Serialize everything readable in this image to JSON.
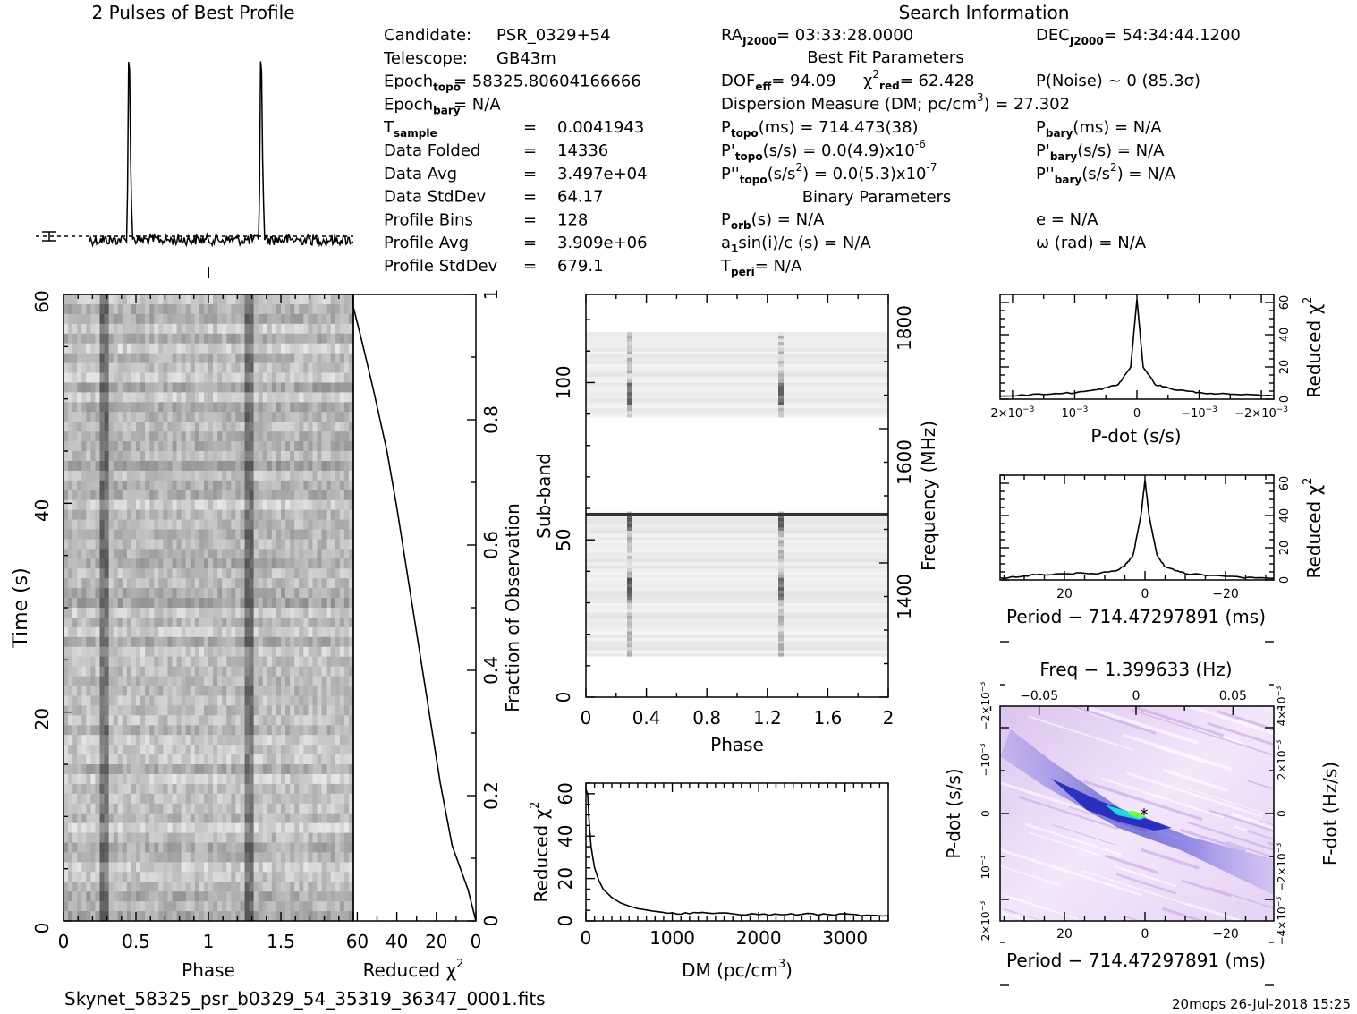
{
  "page": {
    "profile_title": "2 Pulses of Best Profile",
    "search_title": "Search Information",
    "filename": "Skynet_58325_psr_b0329_54_35319_36347_0001.fits",
    "footer_stamp": "20mops  26-Jul-2018 15:25"
  },
  "info": {
    "left": [
      {
        "label": "Candidate:",
        "sub": "",
        "value": "PSR_0329+54"
      },
      {
        "label": "Telescope:",
        "sub": "",
        "value": "GB43m"
      },
      {
        "label": "Epoch",
        "sub": "topo",
        "value": "= 58325.80604166666"
      },
      {
        "label": "Epoch",
        "sub": "bary",
        "value": "= N/A"
      },
      {
        "label": "T",
        "sub": "sample",
        "value": "=   0.0041943"
      },
      {
        "label": "Data Folded",
        "sub": "",
        "value": "=   14336"
      },
      {
        "label": "Data Avg",
        "sub": "",
        "value": "=   3.497e+04"
      },
      {
        "label": "Data StdDev",
        "sub": "",
        "value": "=   64.17"
      },
      {
        "label": "Profile Bins",
        "sub": "",
        "value": "=   128"
      },
      {
        "label": "Profile Avg",
        "sub": "",
        "value": "=   3.909e+06"
      },
      {
        "label": "Profile StdDev",
        "sub": "",
        "value": "=   679.1"
      }
    ],
    "ra": "RA",
    "ra_sub": "J2000",
    "ra_value": "= 03:33:28.0000",
    "dec": "DEC",
    "dec_sub": "J2000",
    "dec_value": "= 54:34:44.1200",
    "best_fit_header": "Best Fit Parameters",
    "dof": "DOF",
    "dof_sub": "eff",
    "dof_value": "= 94.09",
    "chi": "χ",
    "chi_sup": "2",
    "chi_sub": "red",
    "chi_value": "= 62.428",
    "pnoise": "P(Noise) ~ 0    (85.3σ)",
    "dm_line": "Dispersion Measure (DM; pc/cm",
    "dm_sup": "3",
    "dm_value": ") = 27.302",
    "ptopo": "P",
    "ptopo_sub": "topo",
    "ptopo_value": "(ms) =  714.473(38)",
    "pbary": "P",
    "pbary_sub": "bary",
    "pbary_value": "(ms) = N/A",
    "pdtopo": "P'",
    "pdtopo_sub": "topo",
    "pdtopo_value": "(s/s) = 0.0(4.9)x10",
    "pdtopo_sup": "-6",
    "pdbary": "P'",
    "pdbary_sub": "bary",
    "pdbary_value": "(s/s) = N/A",
    "pddtopo": "P''",
    "pddtopo_sub": "topo",
    "pddtopo_value": "(s/s",
    "pddtopo_sup1": "2",
    "pddtopo_value2": ") = 0.0(5.3)x10",
    "pddtopo_sup2": "-7",
    "pddbary": "P''",
    "pddbary_sub": "bary",
    "pddbary_value": "(s/s",
    "pddbary_sup": "2",
    "pddbary_value2": ") = N/A",
    "binary_header": "Binary Parameters",
    "porb": "P",
    "porb_sub": "orb",
    "porb_value": "(s) = N/A",
    "ecc": "e = N/A",
    "a1": "a",
    "a1_sub": "1",
    "a1_value": "sin(i)/c (s) = N/A",
    "omega": "ω (rad) = N/A",
    "tperi": "T",
    "tperi_sub": "peri",
    "tperi_value": "= N/A"
  },
  "labels": {
    "time_y": "Time (s)",
    "phase": "Phase",
    "reduced_chi": "Reduced χ",
    "chi_sup": "2",
    "fraction": "Fraction of Observation",
    "subband": "Sub-band",
    "frequency": "Frequency (MHz)",
    "dm_x": "DM (pc/cm",
    "dm_x_sup": "3",
    "dm_x_end": ")",
    "pdot_x": "P-dot (s/s)",
    "period_x": "Period − 714.47297891 (ms)",
    "freq_top": "Freq − 1.399633 (Hz)",
    "pdot_y": "P-dot (s/s)",
    "fdot_y": "F-dot (Hz/s)"
  },
  "ticks": {
    "time_y": [
      "0",
      "20",
      "40",
      "60"
    ],
    "phase_x": [
      "0",
      "0.5",
      "1",
      "1.5"
    ],
    "redchi_x": [
      "60",
      "40",
      "20",
      "0"
    ],
    "fraction_y": [
      "0",
      "0.2",
      "0.4",
      "0.6",
      "0.8",
      "1"
    ],
    "subband_y": [
      "0",
      "50",
      "100"
    ],
    "freq_y": [
      "1400",
      "1600",
      "1800"
    ],
    "phase2_x": [
      "0",
      "0.4",
      "0.8",
      "1.2",
      "1.6",
      "2"
    ],
    "dm_x": [
      "0",
      "1000",
      "2000",
      "3000"
    ],
    "dm_y": [
      "0",
      "20",
      "40",
      "60"
    ],
    "pdot_x": [
      "2×10",
      "10",
      "0",
      "−10",
      "−2×10"
    ],
    "pdot_x_sup": "−3",
    "red_y": [
      "0",
      "20",
      "40",
      "60"
    ],
    "period_x": [
      "20",
      "0",
      "−20"
    ],
    "freq_top": [
      "−0.05",
      "0",
      "0.05"
    ],
    "pdot_left": [
      "2×10",
      "10",
      "0",
      "−10",
      "−2×10"
    ],
    "fdot_right": [
      "−4×10",
      "−2×10",
      "0",
      "2×10",
      "4×10"
    ]
  },
  "chart_data": [
    {
      "type": "line",
      "title": "2 Pulses of Best Profile",
      "xlabel": "Phase",
      "ylabel": "",
      "x_range": [
        0,
        2
      ],
      "series": [
        {
          "peaks_at_phase": [
            0.3,
            1.3
          ]
        }
      ]
    },
    {
      "type": "heatmap",
      "xlabel": "Phase",
      "ylabel": "Time (s)",
      "xlim": [
        0,
        2
      ],
      "ylim": [
        0,
        60
      ],
      "pulse_phases": [
        0.29,
        1.29
      ],
      "colormap": "grayscale"
    },
    {
      "type": "line",
      "xlabel": "Reduced χ2",
      "ylabel": "Fraction of Observation",
      "xlim": [
        62,
        0
      ],
      "ylim": [
        0,
        1
      ],
      "x": [
        62.4,
        62,
        58,
        52,
        45,
        40,
        32,
        25,
        18,
        12,
        4,
        0
      ],
      "y": [
        1.0,
        0.98,
        0.93,
        0.85,
        0.75,
        0.66,
        0.5,
        0.36,
        0.22,
        0.12,
        0.05,
        0.0
      ]
    },
    {
      "type": "heatmap",
      "xlabel": "Phase",
      "ylabel": "Sub-band",
      "xlim": [
        0,
        2
      ],
      "ylim": [
        0,
        128
      ],
      "y2label": "Frequency (MHz)",
      "y2ticks": [
        1400,
        1600,
        1800
      ],
      "pulse_phases": [
        0.29,
        1.29
      ],
      "colormap": "grayscale"
    },
    {
      "type": "line",
      "xlabel": "DM (pc/cm3)",
      "ylabel": "Reduced χ2",
      "xlim": [
        0,
        3500
      ],
      "ylim": [
        0,
        65
      ],
      "x": [
        0,
        20,
        40,
        60,
        100,
        150,
        200,
        300,
        400,
        500,
        600,
        800,
        1000,
        1400,
        2000,
        2500,
        3000,
        3500
      ],
      "y": [
        62,
        60,
        45,
        35,
        25,
        19,
        15,
        11,
        8.5,
        7,
        5.8,
        4.5,
        3.5,
        3.8,
        3.0,
        3.2,
        3.0,
        2.5
      ]
    },
    {
      "type": "line",
      "xlabel": "P-dot (s/s)",
      "ylabel": "Reduced χ2",
      "xlim": [
        0.0022,
        -0.0022
      ],
      "ylim": [
        0,
        65
      ],
      "x": [
        0.0022,
        0.0015,
        0.001,
        0.0006,
        0.0003,
        0.0001,
        0,
        -0.0001,
        -0.0003,
        -0.0006,
        -0.001,
        -0.0015,
        -0.0022
      ],
      "y": [
        2,
        3,
        4,
        6,
        9,
        20,
        62,
        20,
        9,
        6,
        4,
        3,
        2
      ]
    },
    {
      "type": "line",
      "xlabel": "Period − 714.47297891 (ms)",
      "ylabel": "Reduced χ2",
      "xlim": [
        36,
        -32
      ],
      "ylim": [
        0,
        65
      ],
      "x": [
        36,
        28,
        20,
        12,
        7,
        5,
        3,
        1,
        0,
        -1,
        -3,
        -5,
        -10,
        -20,
        -32
      ],
      "y": [
        1,
        3,
        4,
        4,
        6,
        9,
        15,
        40,
        62,
        40,
        15,
        8,
        4,
        2,
        1
      ],
      "note_points": []
    },
    {
      "type": "heatmap",
      "xlabel": "Period − 714.47297891 (ms)",
      "ylabel": "P-dot (s/s)",
      "x2label": "Freq − 1.399633 (Hz)",
      "y2label": "F-dot (Hz/s)",
      "xlim": [
        36,
        -32
      ],
      "colormap": "purple-blue-green"
    }
  ]
}
